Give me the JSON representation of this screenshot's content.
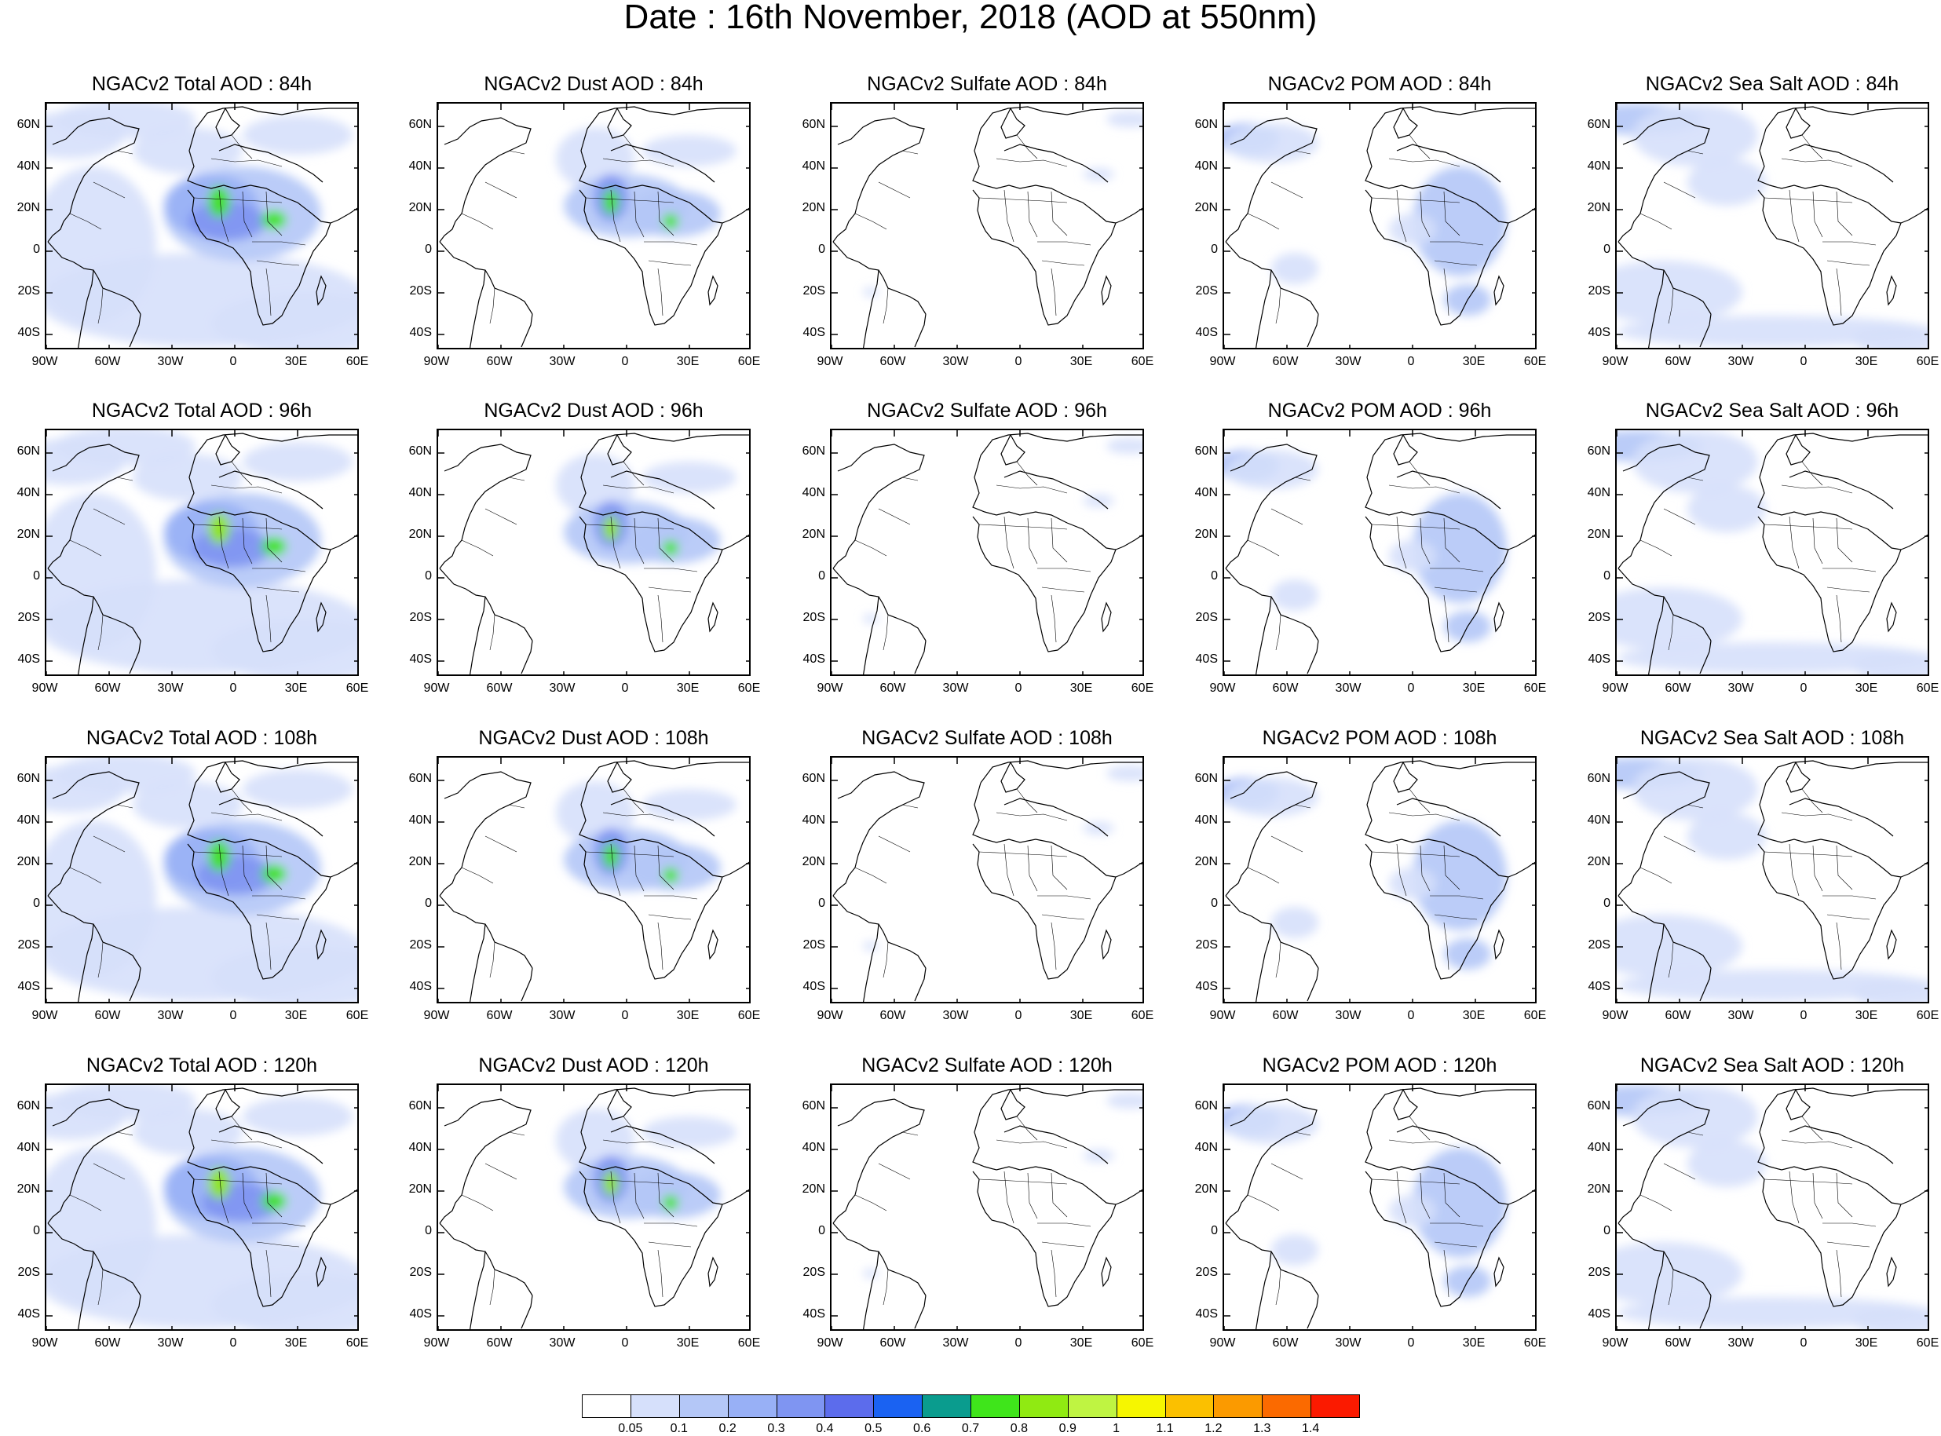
{
  "title": "Date : 16th November, 2018 (AOD at 550nm)",
  "lat_labels": [
    "60N",
    "40N",
    "20N",
    "0",
    "20S",
    "40S"
  ],
  "lon_labels": [
    "90W",
    "60W",
    "30W",
    "0",
    "30E",
    "60E"
  ],
  "panels": [
    [
      "NGACv2 Total AOD : 84h",
      "NGACv2 Dust AOD : 84h",
      "NGACv2 Sulfate AOD : 84h",
      "NGACv2 POM AOD : 84h",
      "NGACv2 Sea Salt AOD : 84h"
    ],
    [
      "NGACv2 Total AOD : 96h",
      "NGACv2 Dust AOD : 96h",
      "NGACv2 Sulfate AOD : 96h",
      "NGACv2 POM AOD : 96h",
      "NGACv2 Sea Salt AOD : 96h"
    ],
    [
      "NGACv2 Total AOD : 108h",
      "NGACv2 Dust AOD : 108h",
      "NGACv2 Sulfate AOD : 108h",
      "NGACv2 POM AOD : 108h",
      "NGACv2 Sea Salt AOD : 108h"
    ],
    [
      "NGACv2 Total AOD : 120h",
      "NGACv2 Dust AOD : 120h",
      "NGACv2 Sulfate AOD : 120h",
      "NGACv2 POM AOD : 120h",
      "NGACv2 Sea Salt  AOD : 120h"
    ]
  ],
  "colorbar": {
    "labels": [
      "0.05",
      "0.1",
      "0.2",
      "0.3",
      "0.4",
      "0.5",
      "0.6",
      "0.7",
      "0.8",
      "0.9",
      "1",
      "1.1",
      "1.2",
      "1.3",
      "1.4"
    ],
    "colors": [
      "#ffffff",
      "#d6e0fb",
      "#b4c7f7",
      "#98b0f6",
      "#7f95f2",
      "#5c6cec",
      "#1a62f2",
      "#0a9c8e",
      "#3fe51b",
      "#90ea12",
      "#bff442",
      "#f6f600",
      "#fbc000",
      "#fb9a00",
      "#fb6a00",
      "#fb1a00"
    ]
  }
}
